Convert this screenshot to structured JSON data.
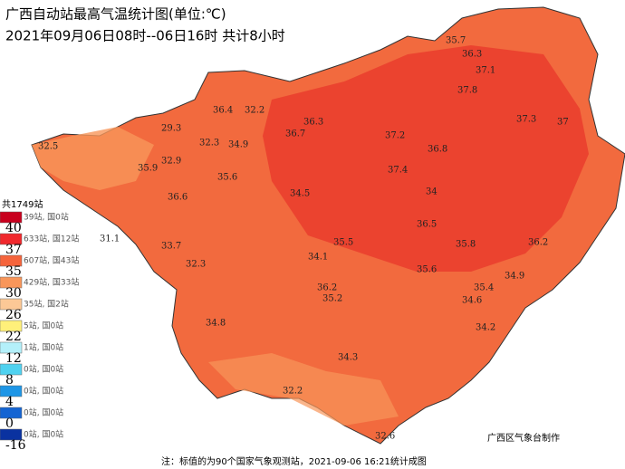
{
  "header": {
    "title": "广西自动站最高气温统计图(单位:℃)",
    "subtitle": "2021年09月06日08时--06日16时  共计8小时"
  },
  "legend": {
    "total": "共1749站",
    "bins": [
      {
        "color": "#c8001e",
        "count": "39站, 国0站",
        "threshold": 40
      },
      {
        "color": "#f0282d",
        "count": "633站, 国12站",
        "threshold": 37
      },
      {
        "color": "#f5643c",
        "count": "607站, 国43站",
        "threshold": 35
      },
      {
        "color": "#f8965a",
        "count": "429站, 国33站",
        "threshold": 30
      },
      {
        "color": "#fcc896",
        "count": "35站, 国2站",
        "threshold": 26
      },
      {
        "color": "#fff07a",
        "count": "5站, 国0站",
        "threshold": 22
      },
      {
        "color": "#b4f0fa",
        "count": "1站, 国0站",
        "threshold": 12
      },
      {
        "color": "#50d2f0",
        "count": "0站, 国0站",
        "threshold": 8
      },
      {
        "color": "#1e96e6",
        "count": "0站, 国0站",
        "threshold": 4
      },
      {
        "color": "#1464d2",
        "count": "0站, 国0站",
        "threshold": 0
      },
      {
        "color": "#0a32a0",
        "count": "0站, 国0站",
        "threshold": -16
      }
    ]
  },
  "stations": [
    32.5,
    29.3,
    32.9,
    35.9,
    36.4,
    32.2,
    32.3,
    34.9,
    35.6,
    36.3,
    36.7,
    34.5,
    37.2,
    36.8,
    37.4,
    36.6,
    35.7,
    34,
    36.3,
    37.1,
    37.8,
    37.3,
    37,
    36.5,
    36.2,
    35.8,
    33.7,
    31.1,
    32.3,
    35.5,
    34.1,
    36.2,
    35.2,
    35.6,
    34.6,
    34.9,
    35.4,
    34.8,
    34.3,
    34.2,
    32.2,
    32.6
  ],
  "footer": {
    "note": "注：标值的为90个国家气象观测站，2021-09-06 16:21统计成图",
    "credit": "广西区气象台制作"
  }
}
